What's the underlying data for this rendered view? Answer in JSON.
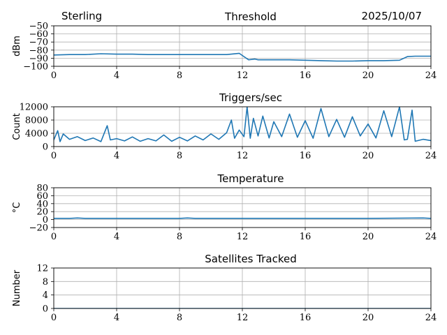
{
  "header": {
    "station": "Sterling",
    "date": "2025/10/07"
  },
  "colors": {
    "series": "#1f77b4",
    "grid": "#b0b0b0",
    "axis": "#000000"
  },
  "chart_data": [
    {
      "type": "line",
      "title": "Threshold",
      "ylabel": "dBm",
      "xlim": [
        0,
        24
      ],
      "ylim": [
        -100,
        -50
      ],
      "yticks": [
        -50,
        -60,
        -70,
        -80,
        -90,
        -100
      ],
      "ytick_labels": [
        "−50",
        "−60",
        "−70",
        "−80",
        "−90",
        "−100"
      ],
      "xticks": [
        0,
        4,
        8,
        12,
        16,
        20,
        24
      ],
      "xtick_labels": [
        "0",
        "4",
        "8",
        "12",
        "16",
        "20",
        "24"
      ],
      "grid": true,
      "series": [
        {
          "x": [
            0,
            1,
            2,
            3,
            4,
            5,
            6,
            7,
            8,
            9,
            10,
            11,
            11.8,
            12.1,
            12.4,
            12.8,
            13,
            14,
            15,
            16,
            17,
            18,
            19,
            20,
            21,
            22,
            22.5,
            23,
            24
          ],
          "values": [
            -86,
            -85.5,
            -85.5,
            -84.5,
            -85,
            -85,
            -85.5,
            -85.5,
            -85.5,
            -85.5,
            -85.5,
            -85.5,
            -84,
            -88,
            -92,
            -91,
            -92,
            -92,
            -92,
            -92.5,
            -93,
            -93.5,
            -93.5,
            -93,
            -93,
            -92.5,
            -88,
            -87.5,
            -87.5
          ]
        }
      ]
    },
    {
      "type": "line",
      "title": "Triggers/sec",
      "ylabel": "Count",
      "xlim": [
        0,
        24
      ],
      "ylim": [
        0,
        12000
      ],
      "yticks": [
        0,
        4000,
        8000,
        12000
      ],
      "ytick_labels": [
        "0",
        "4000",
        "8000",
        "12000"
      ],
      "xticks": [
        0,
        4,
        8,
        12,
        16,
        20,
        24
      ],
      "xtick_labels": [
        "0",
        "4",
        "8",
        "12",
        "16",
        "20",
        "24"
      ],
      "grid": true,
      "series": [
        {
          "x": [
            0,
            0.25,
            0.4,
            0.6,
            1.0,
            1.5,
            2.0,
            2.5,
            3.0,
            3.4,
            3.6,
            4.0,
            4.5,
            5.0,
            5.5,
            6.0,
            6.5,
            7.0,
            7.5,
            8.0,
            8.5,
            9.0,
            9.5,
            10.0,
            10.5,
            11.0,
            11.3,
            11.5,
            11.8,
            12.1,
            12.3,
            12.5,
            12.7,
            13.0,
            13.3,
            13.7,
            14.0,
            14.5,
            15.0,
            15.5,
            16.0,
            16.5,
            17.0,
            17.5,
            18.0,
            18.5,
            19.0,
            19.5,
            20.0,
            20.5,
            21.0,
            21.5,
            22.0,
            22.3,
            22.5,
            22.8,
            23.0,
            23.5,
            24.0
          ],
          "values": [
            2000,
            4800,
            1500,
            3800,
            2200,
            3000,
            1800,
            2600,
            1500,
            6300,
            2000,
            2400,
            1700,
            2900,
            1600,
            2400,
            1700,
            3500,
            1600,
            2800,
            1700,
            3200,
            2000,
            3800,
            2200,
            4200,
            8000,
            2500,
            5000,
            3000,
            12000,
            2500,
            8500,
            3200,
            9200,
            2600,
            7500,
            3000,
            9800,
            2800,
            7800,
            2500,
            11500,
            3000,
            8200,
            2800,
            9000,
            3200,
            6800,
            2600,
            10800,
            3000,
            12000,
            2000,
            2200,
            11000,
            1600,
            2200,
            1800
          ]
        }
      ]
    },
    {
      "type": "line",
      "title": "Temperature",
      "ylabel": "°C",
      "xlim": [
        0,
        24
      ],
      "ylim": [
        -20,
        80
      ],
      "yticks": [
        -20,
        0,
        20,
        40,
        60,
        80
      ],
      "ytick_labels": [
        "−20",
        "0",
        "20",
        "40",
        "60",
        "80"
      ],
      "xticks": [
        0,
        4,
        8,
        12,
        16,
        20,
        24
      ],
      "xtick_labels": [
        "0",
        "4",
        "8",
        "12",
        "16",
        "20",
        "24"
      ],
      "grid": true,
      "series": [
        {
          "x": [
            0,
            1,
            1.5,
            2,
            4,
            6,
            8,
            8.5,
            9,
            12,
            16,
            20,
            23.5,
            24
          ],
          "values": [
            3,
            3,
            4,
            3,
            3,
            3,
            3,
            4,
            3,
            3,
            3,
            3,
            4,
            3
          ]
        }
      ]
    },
    {
      "type": "line",
      "title": "Satellites Tracked",
      "ylabel": "Number",
      "xlim": [
        0,
        24
      ],
      "ylim": [
        0,
        12
      ],
      "yticks": [
        0,
        4,
        8,
        12
      ],
      "ytick_labels": [
        "0",
        "4",
        "8",
        "12"
      ],
      "xticks": [
        0,
        4,
        8,
        12,
        16,
        20,
        24
      ],
      "xtick_labels": [
        "0",
        "4",
        "8",
        "12",
        "16",
        "20",
        "24"
      ],
      "grid": true,
      "series": [
        {
          "x": [
            0,
            24
          ],
          "values": [
            0,
            0
          ]
        }
      ]
    }
  ]
}
